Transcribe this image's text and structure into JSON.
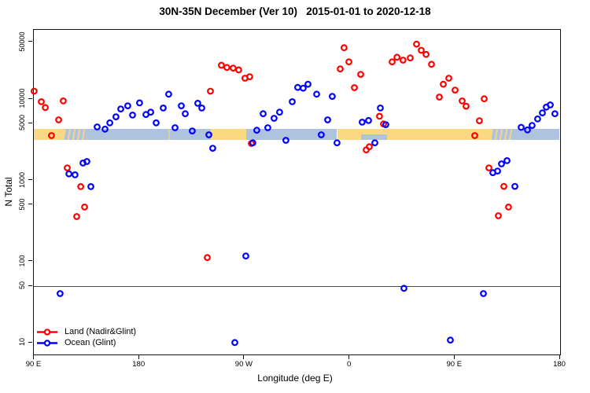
{
  "title": "30N-35N December (Ver 10)   2015-01-01 to 2020-12-18",
  "colors": {
    "land_series": "#FF0000",
    "ocean_series": "#0000FF",
    "band_land": "#FAD884",
    "band_ocean": "#AEC3DE",
    "reference_line": "#4a4a4a",
    "axis": "#111111"
  },
  "chart_data": {
    "type": "scatter",
    "title": "30N-35N December (Ver 10)   2015-01-01 to 2020-12-18",
    "xlabel": "Longitude (deg E)",
    "ylabel": "N Total",
    "x_axis": {
      "lim": [
        90,
        540
      ],
      "note": "longitude shown continuously eastward with wrap: 90E to 180 to 90W to 0 to 90E to 180",
      "ticks": [
        90,
        180,
        270,
        360,
        450,
        540
      ],
      "tick_labels": [
        "90 E",
        "180",
        "90 W",
        "0",
        "90 E",
        "180"
      ]
    },
    "y_axis": {
      "scale": "log",
      "lim": [
        7.2,
        70500
      ],
      "ticks": [
        10,
        50,
        100,
        500,
        1000,
        5000,
        10000,
        50000
      ],
      "tick_labels": [
        "10",
        "50",
        "100",
        "500",
        "1000",
        "5000",
        "10000",
        "50000"
      ]
    },
    "grid": "off",
    "reference_line_y": 50,
    "legend_position": "bottom-left",
    "legend": [
      {
        "label": "Land (Nadir&Glint)",
        "color": "#FF0000"
      },
      {
        "label": "Ocean (Glint)",
        "color": "#0000FF"
      }
    ],
    "map_band": {
      "description": "30N-35N latitude strip map drawn across plot: tan=land, light blue=ocean",
      "value_top": 4230,
      "value_bottom": 3130,
      "segments": [
        {
          "surface": "land",
          "from": 90,
          "to": 116.5
        },
        {
          "surface": "coast-islands",
          "from": 116.5,
          "to": 135.5
        },
        {
          "surface": "ocean",
          "from": 135.5,
          "to": 202
        },
        {
          "surface": "islands-sparse",
          "from": 202,
          "to": 209
        },
        {
          "surface": "ocean",
          "from": 209,
          "to": 241.5
        },
        {
          "surface": "land",
          "from": 241.5,
          "to": 271.5
        },
        {
          "surface": "ocean",
          "from": 271.5,
          "to": 349.5
        },
        {
          "surface": "land",
          "from": 349.5,
          "to": 482
        },
        {
          "surface": "coast-islands",
          "from": 482,
          "to": 499
        },
        {
          "surface": "ocean",
          "from": 499,
          "to": 540
        }
      ],
      "inland_sea_notch": {
        "from": 370,
        "to": 392,
        "half": "bottom"
      }
    },
    "series": [
      {
        "name": "Land (Nadir&Glint)",
        "color": "#FF0000",
        "points": [
          [
            90.3,
            12400
          ],
          [
            96.4,
            9200
          ],
          [
            99.8,
            7800
          ],
          [
            115.2,
            9400
          ],
          [
            111.2,
            5500
          ],
          [
            105.1,
            3520
          ],
          [
            118.6,
            1410
          ],
          [
            130.1,
            830
          ],
          [
            133.4,
            465
          ],
          [
            126.7,
            355
          ],
          [
            238.4,
            111
          ],
          [
            241.1,
            12400
          ],
          [
            250.5,
            25900
          ],
          [
            255.2,
            24300
          ],
          [
            260.6,
            23800
          ],
          [
            265.3,
            22700
          ],
          [
            270.7,
            17900
          ],
          [
            274.7,
            18700
          ],
          [
            276.1,
            2820
          ],
          [
            352.2,
            23300
          ],
          [
            355.5,
            42500
          ],
          [
            359.6,
            28500
          ],
          [
            364.3,
            13700
          ],
          [
            369.7,
            20000
          ],
          [
            374.4,
            2350
          ],
          [
            377.1,
            2570
          ],
          [
            385.8,
            6100
          ],
          [
            389.2,
            4900
          ],
          [
            396.6,
            28500
          ],
          [
            400.7,
            32500
          ],
          [
            406.0,
            29900
          ],
          [
            412.1,
            31800
          ],
          [
            417.5,
            47000
          ],
          [
            421.5,
            39500
          ],
          [
            425.6,
            35200
          ],
          [
            430.3,
            26600
          ],
          [
            437.0,
            10500
          ],
          [
            440.4,
            15100
          ],
          [
            445.1,
            17900
          ],
          [
            450.5,
            12800
          ],
          [
            456.5,
            9400
          ],
          [
            459.9,
            8100
          ],
          [
            467.3,
            3520
          ],
          [
            471.3,
            5370
          ],
          [
            475.4,
            10000
          ],
          [
            479.4,
            1410
          ],
          [
            492.2,
            835
          ],
          [
            496.2,
            465
          ],
          [
            487.5,
            363
          ]
        ]
      },
      {
        "name": "Ocean (Glint)",
        "color": "#0000FF",
        "points": [
          [
            144.2,
            4500
          ],
          [
            150.9,
            4230
          ],
          [
            155.0,
            5050
          ],
          [
            160.3,
            6000
          ],
          [
            164.4,
            7500
          ],
          [
            170.4,
            8200
          ],
          [
            174.5,
            6300
          ],
          [
            180.5,
            8900
          ],
          [
            185.9,
            6400
          ],
          [
            190.0,
            6850
          ],
          [
            194.7,
            5050
          ],
          [
            200.7,
            7700
          ],
          [
            205.4,
            11400
          ],
          [
            210.8,
            4400
          ],
          [
            216.2,
            8200
          ],
          [
            219.6,
            6550
          ],
          [
            225.6,
            4020
          ],
          [
            230.3,
            8800
          ],
          [
            233.7,
            7700
          ],
          [
            239.8,
            3600
          ],
          [
            243.1,
            2460
          ],
          [
            277.4,
            2870
          ],
          [
            280.8,
            4100
          ],
          [
            286.2,
            6550
          ],
          [
            290.2,
            4400
          ],
          [
            295.6,
            5750
          ],
          [
            300.3,
            6850
          ],
          [
            305.7,
            3080
          ],
          [
            311.1,
            9200
          ],
          [
            315.8,
            13800
          ],
          [
            320.5,
            13500
          ],
          [
            324.6,
            15100
          ],
          [
            332.0,
            11400
          ],
          [
            336.0,
            3600
          ],
          [
            341.4,
            5500
          ],
          [
            345.4,
            10700
          ],
          [
            349.4,
            2870
          ],
          [
            371.0,
            5160
          ],
          [
            376.4,
            5400
          ],
          [
            381.8,
            2870
          ],
          [
            386.5,
            7700
          ],
          [
            391.2,
            4800
          ],
          [
            120.0,
            1190
          ],
          [
            125.3,
            1160
          ],
          [
            132.1,
            1620
          ],
          [
            135.4,
            1690
          ],
          [
            138.8,
            830
          ],
          [
            482.8,
            1230
          ],
          [
            486.8,
            1290
          ],
          [
            490.2,
            1580
          ],
          [
            494.9,
            1730
          ],
          [
            501.6,
            835
          ],
          [
            507.0,
            4450
          ],
          [
            512.4,
            4140
          ],
          [
            516.4,
            4700
          ],
          [
            521.1,
            5650
          ],
          [
            525.2,
            6700
          ],
          [
            528.5,
            7900
          ],
          [
            531.9,
            8400
          ],
          [
            535.9,
            6550
          ],
          [
            112.5,
            40
          ],
          [
            474.7,
            40
          ],
          [
            406.7,
            46.5
          ],
          [
            262.0,
            10
          ],
          [
            446.4,
            10.7
          ],
          [
            271.4,
            116
          ]
        ]
      }
    ],
    "marker": {
      "shape": "open-circle",
      "radius_px": 3.3,
      "stroke_px": 2.2
    }
  }
}
